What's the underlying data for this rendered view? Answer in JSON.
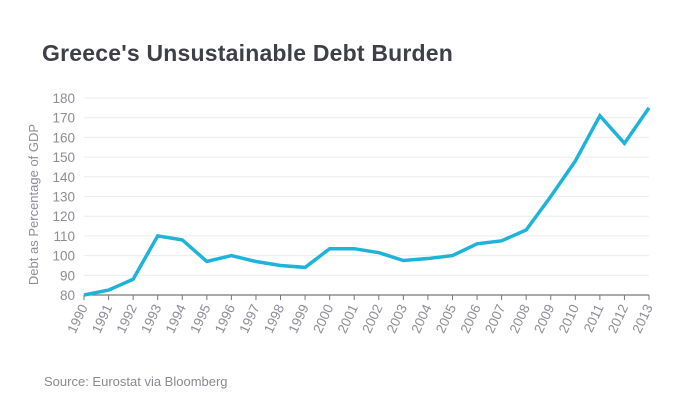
{
  "chart_data": {
    "type": "line",
    "title": "Greece's Unsustainable Debt Burden",
    "xlabel": "",
    "ylabel": "Debt as Percentage of GDP",
    "source": "Source: Eurostat via Bloomberg",
    "ylim": [
      80,
      180
    ],
    "yticks": [
      80,
      90,
      100,
      110,
      120,
      130,
      140,
      150,
      160,
      170,
      180
    ],
    "grid": true,
    "line_color": "#1eb3d8",
    "categories": [
      "1990",
      "1991",
      "1992",
      "1993",
      "1994",
      "1995",
      "1996",
      "1997",
      "1998",
      "1999",
      "2000",
      "2001",
      "2002",
      "2003",
      "2004",
      "2005",
      "2006",
      "2007",
      "2008",
      "2009",
      "2010",
      "2011",
      "2012",
      "2013"
    ],
    "series": [
      {
        "name": "Debt as Percentage of GDP",
        "values": [
          80,
          82.5,
          88,
          110,
          108,
          97,
          100,
          97,
          95,
          94,
          103.5,
          103.5,
          101.5,
          97.5,
          98.5,
          100,
          106,
          107.5,
          113,
          130,
          148,
          171,
          157,
          175
        ]
      }
    ]
  }
}
